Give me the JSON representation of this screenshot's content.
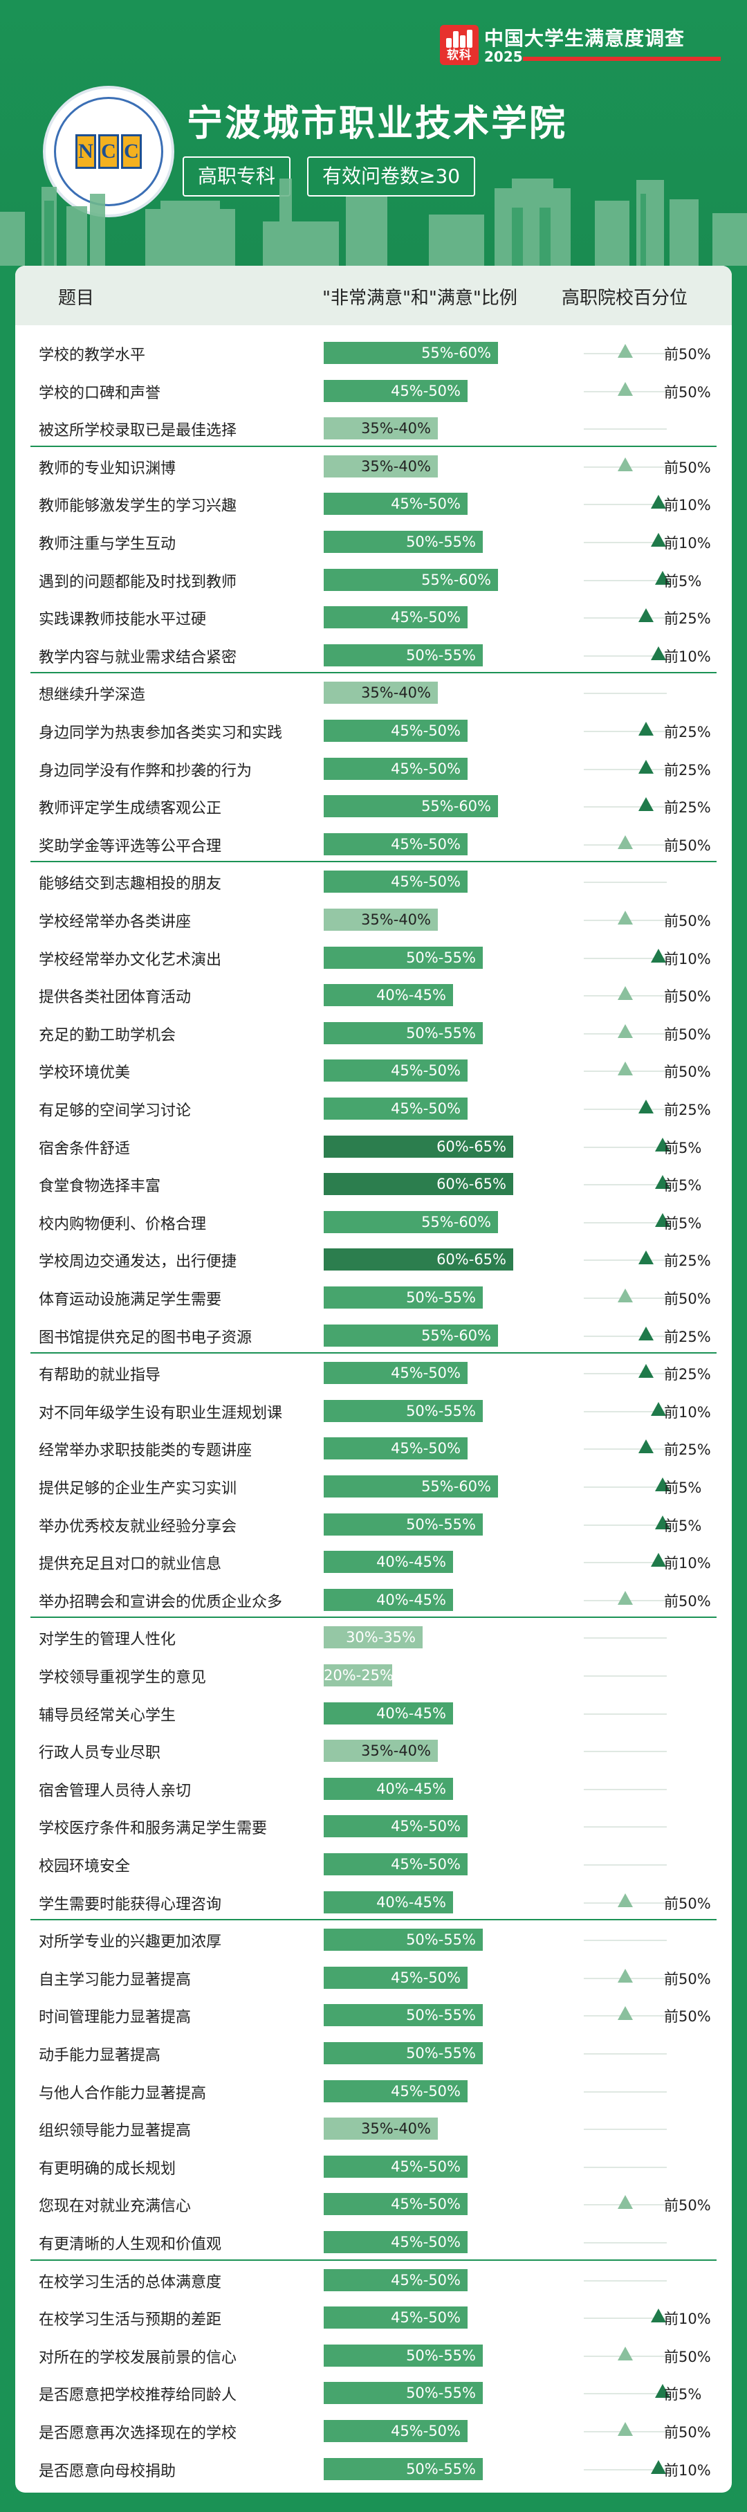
{
  "brand": {
    "logo_label": "软科",
    "title": "中国大学生满意度调查",
    "year": "2025"
  },
  "school": {
    "name": "宁波城市职业技术学院",
    "emblem_letters": [
      "N",
      "C",
      "C"
    ],
    "tags": [
      "高职专科",
      "有效问卷数≥30"
    ]
  },
  "table": {
    "headers": [
      "题目",
      "\"非常满意\"和\"满意\"比例",
      "高职院校百分位"
    ],
    "groups": [
      {
        "rows": [
          {
            "q": "学校的教学水平",
            "range": "55%-60%",
            "lo": 55,
            "pct": "前50%",
            "pos": 0.5
          },
          {
            "q": "学校的口碑和声誉",
            "range": "45%-50%",
            "lo": 45,
            "pct": "前50%",
            "pos": 0.5
          },
          {
            "q": "被这所学校录取已是最佳选择",
            "range": "35%-40%",
            "lo": 35,
            "pct": "",
            "pos": null
          }
        ]
      },
      {
        "rows": [
          {
            "q": "教师的专业知识渊博",
            "range": "35%-40%",
            "lo": 35,
            "pct": "前50%",
            "pos": 0.5
          },
          {
            "q": "教师能够激发学生的学习兴趣",
            "range": "45%-50%",
            "lo": 45,
            "pct": "前10%",
            "pos": 0.9
          },
          {
            "q": "教师注重与学生互动",
            "range": "50%-55%",
            "lo": 50,
            "pct": "前10%",
            "pos": 0.9
          },
          {
            "q": "遇到的问题都能及时找到教师",
            "range": "55%-60%",
            "lo": 55,
            "pct": "前5%",
            "pos": 0.95
          },
          {
            "q": "实践课教师技能水平过硬",
            "range": "45%-50%",
            "lo": 45,
            "pct": "前25%",
            "pos": 0.75
          },
          {
            "q": "教学内容与就业需求结合紧密",
            "range": "50%-55%",
            "lo": 50,
            "pct": "前10%",
            "pos": 0.9
          }
        ]
      },
      {
        "rows": [
          {
            "q": "想继续升学深造",
            "range": "35%-40%",
            "lo": 35,
            "pct": "",
            "pos": null
          },
          {
            "q": "身边同学为热衷参加各类实习和实践",
            "range": "45%-50%",
            "lo": 45,
            "pct": "前25%",
            "pos": 0.75
          },
          {
            "q": "身边同学没有作弊和抄袭的行为",
            "range": "45%-50%",
            "lo": 45,
            "pct": "前25%",
            "pos": 0.75
          },
          {
            "q": "教师评定学生成绩客观公正",
            "range": "55%-60%",
            "lo": 55,
            "pct": "前25%",
            "pos": 0.75
          },
          {
            "q": "奖助学金等评选等公平合理",
            "range": "45%-50%",
            "lo": 45,
            "pct": "前50%",
            "pos": 0.5
          }
        ]
      },
      {
        "rows": [
          {
            "q": "能够结交到志趣相投的朋友",
            "range": "45%-50%",
            "lo": 45,
            "pct": "",
            "pos": null
          },
          {
            "q": "学校经常举办各类讲座",
            "range": "35%-40%",
            "lo": 35,
            "pct": "前50%",
            "pos": 0.5
          },
          {
            "q": "学校经常举办文化艺术演出",
            "range": "50%-55%",
            "lo": 50,
            "pct": "前10%",
            "pos": 0.9
          },
          {
            "q": "提供各类社团体育活动",
            "range": "40%-45%",
            "lo": 40,
            "pct": "前50%",
            "pos": 0.5
          },
          {
            "q": "充足的勤工助学机会",
            "range": "50%-55%",
            "lo": 50,
            "pct": "前50%",
            "pos": 0.5
          },
          {
            "q": "学校环境优美",
            "range": "45%-50%",
            "lo": 45,
            "pct": "前50%",
            "pos": 0.5
          },
          {
            "q": "有足够的空间学习讨论",
            "range": "45%-50%",
            "lo": 45,
            "pct": "前25%",
            "pos": 0.75
          },
          {
            "q": "宿舍条件舒适",
            "range": "60%-65%",
            "lo": 60,
            "pct": "前5%",
            "pos": 0.95
          },
          {
            "q": "食堂食物选择丰富",
            "range": "60%-65%",
            "lo": 60,
            "pct": "前5%",
            "pos": 0.95
          },
          {
            "q": "校内购物便利、价格合理",
            "range": "55%-60%",
            "lo": 55,
            "pct": "前5%",
            "pos": 0.95
          },
          {
            "q": "学校周边交通发达，出行便捷",
            "range": "60%-65%",
            "lo": 60,
            "pct": "前25%",
            "pos": 0.75
          },
          {
            "q": "体育运动设施满足学生需要",
            "range": "50%-55%",
            "lo": 50,
            "pct": "前50%",
            "pos": 0.5
          },
          {
            "q": "图书馆提供充足的图书电子资源",
            "range": "55%-60%",
            "lo": 55,
            "pct": "前25%",
            "pos": 0.75
          }
        ]
      },
      {
        "rows": [
          {
            "q": "有帮助的就业指导",
            "range": "45%-50%",
            "lo": 45,
            "pct": "前25%",
            "pos": 0.75
          },
          {
            "q": "对不同年级学生设有职业生涯规划课",
            "range": "50%-55%",
            "lo": 50,
            "pct": "前10%",
            "pos": 0.9
          },
          {
            "q": "经常举办求职技能类的专题讲座",
            "range": "45%-50%",
            "lo": 45,
            "pct": "前25%",
            "pos": 0.75
          },
          {
            "q": "提供足够的企业生产实习实训",
            "range": "55%-60%",
            "lo": 55,
            "pct": "前5%",
            "pos": 0.95
          },
          {
            "q": "举办优秀校友就业经验分享会",
            "range": "50%-55%",
            "lo": 50,
            "pct": "前5%",
            "pos": 0.95
          },
          {
            "q": "提供充足且对口的就业信息",
            "range": "40%-45%",
            "lo": 40,
            "pct": "前10%",
            "pos": 0.9
          },
          {
            "q": "举办招聘会和宣讲会的优质企业众多",
            "range": "40%-45%",
            "lo": 40,
            "pct": "前50%",
            "pos": 0.5
          }
        ]
      },
      {
        "rows": [
          {
            "q": "对学生的管理人性化",
            "range": "30%-35%",
            "lo": 30,
            "pct": "",
            "pos": null
          },
          {
            "q": "学校领导重视学生的意见",
            "range": "20%-25%",
            "lo": 20,
            "pct": "",
            "pos": null
          },
          {
            "q": "辅导员经常关心学生",
            "range": "40%-45%",
            "lo": 40,
            "pct": "",
            "pos": null
          },
          {
            "q": "行政人员专业尽职",
            "range": "35%-40%",
            "lo": 35,
            "pct": "",
            "pos": null
          },
          {
            "q": "宿舍管理人员待人亲切",
            "range": "40%-45%",
            "lo": 40,
            "pct": "",
            "pos": null
          },
          {
            "q": "学校医疗条件和服务满足学生需要",
            "range": "45%-50%",
            "lo": 45,
            "pct": "",
            "pos": null
          },
          {
            "q": "校园环境安全",
            "range": "45%-50%",
            "lo": 45,
            "pct": "",
            "pos": null
          },
          {
            "q": "学生需要时能获得心理咨询",
            "range": "40%-45%",
            "lo": 40,
            "pct": "前50%",
            "pos": 0.5
          }
        ]
      },
      {
        "rows": [
          {
            "q": "对所学专业的兴趣更加浓厚",
            "range": "50%-55%",
            "lo": 50,
            "pct": "",
            "pos": null
          },
          {
            "q": "自主学习能力显著提高",
            "range": "45%-50%",
            "lo": 45,
            "pct": "前50%",
            "pos": 0.5
          },
          {
            "q": "时间管理能力显著提高",
            "range": "50%-55%",
            "lo": 50,
            "pct": "前50%",
            "pos": 0.5
          },
          {
            "q": "动手能力显著提高",
            "range": "50%-55%",
            "lo": 50,
            "pct": "",
            "pos": null
          },
          {
            "q": "与他人合作能力显著提高",
            "range": "45%-50%",
            "lo": 45,
            "pct": "",
            "pos": null
          },
          {
            "q": "组织领导能力显著提高",
            "range": "35%-40%",
            "lo": 35,
            "pct": "",
            "pos": null
          },
          {
            "q": "有更明确的成长规划",
            "range": "45%-50%",
            "lo": 45,
            "pct": "",
            "pos": null
          },
          {
            "q": "您现在对就业充满信心",
            "range": "45%-50%",
            "lo": 45,
            "pct": "前50%",
            "pos": 0.5
          },
          {
            "q": "有更清晰的人生观和价值观",
            "range": "45%-50%",
            "lo": 45,
            "pct": "",
            "pos": null
          }
        ]
      },
      {
        "rows": [
          {
            "q": "在校学习生活的总体满意度",
            "range": "45%-50%",
            "lo": 45,
            "pct": "",
            "pos": null
          },
          {
            "q": "在校学习生活与预期的差距",
            "range": "45%-50%",
            "lo": 45,
            "pct": "前10%",
            "pos": 0.9
          },
          {
            "q": "对所在的学校发展前景的信心",
            "range": "50%-55%",
            "lo": 50,
            "pct": "前50%",
            "pos": 0.5
          },
          {
            "q": "是否愿意把学校推荐给同龄人",
            "range": "50%-55%",
            "lo": 50,
            "pct": "前5%",
            "pos": 0.95
          },
          {
            "q": "是否愿意再次选择现在的学校",
            "range": "45%-50%",
            "lo": 45,
            "pct": "前50%",
            "pos": 0.5
          },
          {
            "q": "是否愿意向母校捐助",
            "range": "50%-55%",
            "lo": 50,
            "pct": "前10%",
            "pos": 0.9
          }
        ]
      }
    ]
  }
}
